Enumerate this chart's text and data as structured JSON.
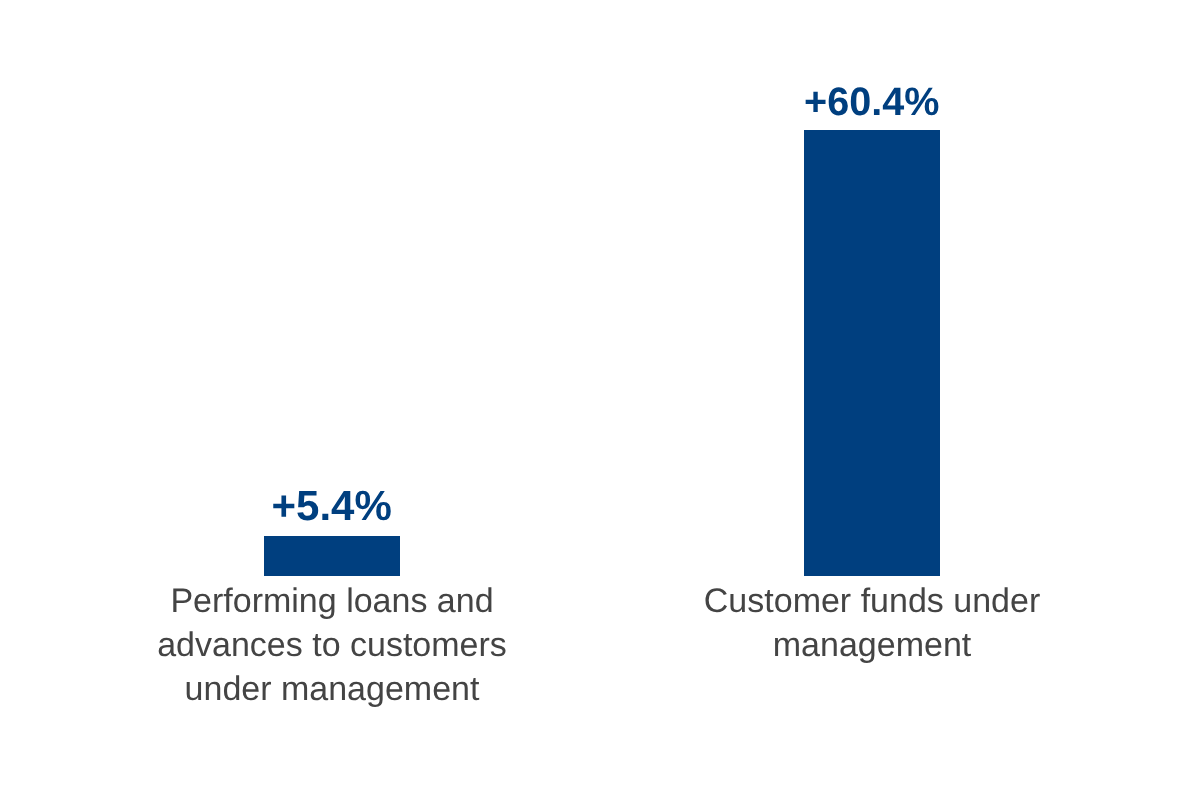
{
  "chart_data": {
    "type": "bar",
    "categories": [
      "Performing loans and advances to customers under management",
      "Customer funds under management"
    ],
    "values": [
      5.4,
      60.4
    ],
    "value_labels": [
      "+5.4%",
      "+60.4%"
    ],
    "color": "#003f7f"
  }
}
